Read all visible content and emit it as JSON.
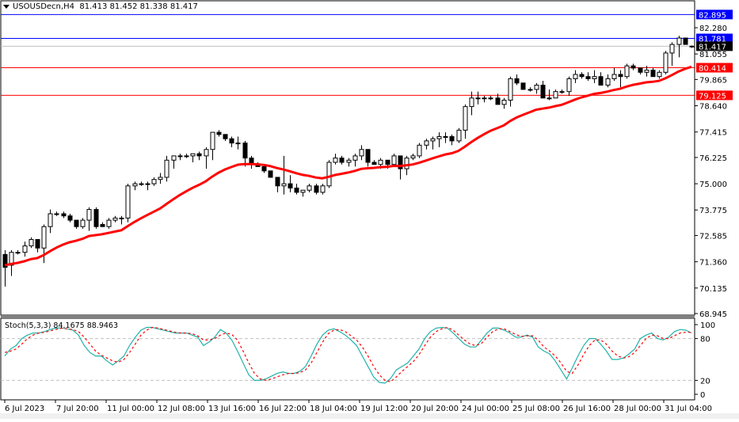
{
  "header": {
    "symbol": "USOUSDecn,H4",
    "ohlc": "81.413 81.452 81.338 81.417"
  },
  "colors": {
    "bull_body": "#ffffff",
    "bear_body": "#000000",
    "ma_line": "#ff0000",
    "blue_level": "#0000ff",
    "red_level": "#ff0000",
    "current_price_line": "#c0c0c0",
    "stoch_main": "#20b2aa",
    "stoch_signal": "#ff0000",
    "grid_dash": "#c0c0c0"
  },
  "price_axis": {
    "ticks": [
      "82.280",
      "81.055",
      "79.865",
      "78.640",
      "77.415",
      "76.225",
      "75.000",
      "73.775",
      "72.585",
      "71.360",
      "70.135",
      "68.945"
    ],
    "badges": [
      {
        "label": "82.895",
        "color": "#0000ff",
        "text_color": "#ffffff"
      },
      {
        "label": "81.781",
        "color": "#0000ff",
        "text_color": "#ffffff"
      },
      {
        "label": "81.417",
        "color": "#000000",
        "text_color": "#ffffff"
      },
      {
        "label": "80.414",
        "color": "#ff0000",
        "text_color": "#ffffff"
      },
      {
        "label": "79.125",
        "color": "#ff0000",
        "text_color": "#ffffff"
      }
    ]
  },
  "stoch": {
    "label": "Stoch(5,3,3) 84.1675 88.9463",
    "levels": [
      "100",
      "80",
      "20",
      "0"
    ]
  },
  "time_axis": {
    "labels": [
      "6 Jul 2023",
      "7 Jul 20:00",
      "11 Jul 00:00",
      "12 Jul 08:00",
      "13 Jul 16:00",
      "16 Jul 22:00",
      "18 Jul 04:00",
      "19 Jul 12:00",
      "20 Jul 20:00",
      "24 Jul 00:00",
      "25 Jul 08:00",
      "26 Jul 16:00",
      "28 Jul 00:00",
      "31 Jul 04:00"
    ]
  },
  "chart_data": [
    {
      "type": "candlestick",
      "title": "USOUSDecn,H4",
      "subtitle": "81.413 81.452 81.338 81.417",
      "ylim": [
        68.945,
        82.895
      ],
      "price_levels": {
        "resistance_blue": [
          82.895,
          81.781
        ],
        "support_red": [
          80.414,
          79.125
        ],
        "current": 81.417
      },
      "moving_average": {
        "color": "#ff0000",
        "from": 71.2,
        "to": 80.2
      },
      "x_labels": [
        "6 Jul 2023",
        "7 Jul 20:00",
        "11 Jul 00:00",
        "12 Jul 08:00",
        "13 Jul 16:00",
        "16 Jul 22:00",
        "18 Jul 04:00",
        "19 Jul 12:00",
        "20 Jul 20:00",
        "24 Jul 00:00",
        "25 Jul 08:00",
        "26 Jul 16:00",
        "28 Jul 00:00",
        "31 Jul 04:00"
      ],
      "candles": [
        [
          71.7,
          71.9,
          70.2,
          71.1
        ],
        [
          71.2,
          71.9,
          70.7,
          71.8
        ],
        [
          71.8,
          71.9,
          71.7,
          71.8
        ],
        [
          71.8,
          72.3,
          71.6,
          72.1
        ],
        [
          72.1,
          72.5,
          72.0,
          72.4
        ],
        [
          72.4,
          72.4,
          71.8,
          72.0
        ],
        [
          72.0,
          73.1,
          71.3,
          73.0
        ],
        [
          73.0,
          73.8,
          72.7,
          73.6
        ],
        [
          73.6,
          73.7,
          73.5,
          73.6
        ],
        [
          73.6,
          73.7,
          73.4,
          73.5
        ],
        [
          73.5,
          73.6,
          73.2,
          73.3
        ],
        [
          73.3,
          73.3,
          72.9,
          73.0
        ],
        [
          73.0,
          73.4,
          72.9,
          73.3
        ],
        [
          73.3,
          73.9,
          72.8,
          73.8
        ],
        [
          73.8,
          73.9,
          72.9,
          73.0
        ],
        [
          73.1,
          73.2,
          73.0,
          73.0
        ],
        [
          73.0,
          73.4,
          72.9,
          73.3
        ],
        [
          73.3,
          73.5,
          73.2,
          73.4
        ],
        [
          73.4,
          73.5,
          73.1,
          73.4
        ],
        [
          73.4,
          75.0,
          73.2,
          74.9
        ],
        [
          74.9,
          75.1,
          74.7,
          75.0
        ],
        [
          75.0,
          75.1,
          74.9,
          75.0
        ],
        [
          75.0,
          75.1,
          74.7,
          75.0
        ],
        [
          75.0,
          75.3,
          74.9,
          75.2
        ],
        [
          75.2,
          75.5,
          75.0,
          75.3
        ],
        [
          75.3,
          76.3,
          75.1,
          76.1
        ],
        [
          76.1,
          76.3,
          75.7,
          76.3
        ],
        [
          76.3,
          76.4,
          76.1,
          76.3
        ],
        [
          76.3,
          76.4,
          76.2,
          76.3
        ],
        [
          76.3,
          76.4,
          76.0,
          76.4
        ],
        [
          76.4,
          76.5,
          76.1,
          76.3
        ],
        [
          76.3,
          76.7,
          75.7,
          76.6
        ],
        [
          76.6,
          77.4,
          76.1,
          77.4
        ],
        [
          77.4,
          77.5,
          77.2,
          77.3
        ],
        [
          77.3,
          77.3,
          77.0,
          77.1
        ],
        [
          77.1,
          77.2,
          76.7,
          76.9
        ],
        [
          76.9,
          77.2,
          76.6,
          76.9
        ],
        [
          76.9,
          77.0,
          75.8,
          76.2
        ],
        [
          76.2,
          76.3,
          75.7,
          75.9
        ],
        [
          75.9,
          76.0,
          75.8,
          75.8
        ],
        [
          75.8,
          75.8,
          75.5,
          75.6
        ],
        [
          75.6,
          75.6,
          75.4,
          75.3
        ],
        [
          75.3,
          75.3,
          74.6,
          74.9
        ],
        [
          74.9,
          76.3,
          74.5,
          75.0
        ],
        [
          75.0,
          75.4,
          74.6,
          74.8
        ],
        [
          74.8,
          75.0,
          74.5,
          74.6
        ],
        [
          74.6,
          74.7,
          74.4,
          74.7
        ],
        [
          74.7,
          75.0,
          74.6,
          74.9
        ],
        [
          74.9,
          75.0,
          74.5,
          74.6
        ],
        [
          74.6,
          75.0,
          74.5,
          74.9
        ],
        [
          74.9,
          76.1,
          74.8,
          76.0
        ],
        [
          76.0,
          76.4,
          75.9,
          76.2
        ],
        [
          76.2,
          76.3,
          75.9,
          76.0
        ],
        [
          76.0,
          76.2,
          75.8,
          76.1
        ],
        [
          76.1,
          76.4,
          75.8,
          76.3
        ],
        [
          76.3,
          76.8,
          76.1,
          76.6
        ],
        [
          76.6,
          76.6,
          75.8,
          76.0
        ],
        [
          76.0,
          76.1,
          75.9,
          75.9
        ],
        [
          75.9,
          76.2,
          75.7,
          76.1
        ],
        [
          76.1,
          76.1,
          75.7,
          75.9
        ],
        [
          75.9,
          76.4,
          75.8,
          76.3
        ],
        [
          76.3,
          76.3,
          75.2,
          75.7
        ],
        [
          75.7,
          76.3,
          75.4,
          76.2
        ],
        [
          76.2,
          76.4,
          76.1,
          76.3
        ],
        [
          76.3,
          76.9,
          76.2,
          76.8
        ],
        [
          76.8,
          77.1,
          76.6,
          77.0
        ],
        [
          77.0,
          77.2,
          76.6,
          77.1
        ],
        [
          77.1,
          77.4,
          76.7,
          77.2
        ],
        [
          77.2,
          77.4,
          76.9,
          77.2
        ],
        [
          77.2,
          77.3,
          76.8,
          77.0
        ],
        [
          77.0,
          77.6,
          76.9,
          77.5
        ],
        [
          77.5,
          78.7,
          77.1,
          78.6
        ],
        [
          78.6,
          79.3,
          78.2,
          79.0
        ],
        [
          79.0,
          79.3,
          78.7,
          79.0
        ],
        [
          79.0,
          79.1,
          78.8,
          79.0
        ],
        [
          79.0,
          79.1,
          78.9,
          79.0
        ],
        [
          79.0,
          79.2,
          78.7,
          78.7
        ],
        [
          78.7,
          79.0,
          78.5,
          78.9
        ],
        [
          78.9,
          80.0,
          78.6,
          79.9
        ],
        [
          79.9,
          80.1,
          79.6,
          79.7
        ],
        [
          79.7,
          79.7,
          79.4,
          79.4
        ],
        [
          79.4,
          79.5,
          79.3,
          79.4
        ],
        [
          79.4,
          79.7,
          79.2,
          79.6
        ],
        [
          79.6,
          79.8,
          79.0,
          79.0
        ],
        [
          79.0,
          79.4,
          78.9,
          79.0
        ],
        [
          79.0,
          79.4,
          79.1,
          79.3
        ],
        [
          79.3,
          79.4,
          79.2,
          79.3
        ],
        [
          79.3,
          80.0,
          79.1,
          79.9
        ],
        [
          79.9,
          80.3,
          79.7,
          80.1
        ],
        [
          80.1,
          80.2,
          79.9,
          80.0
        ],
        [
          80.0,
          80.2,
          79.8,
          79.9
        ],
        [
          79.9,
          80.3,
          79.7,
          80.0
        ],
        [
          80.0,
          80.2,
          79.8,
          79.6
        ],
        [
          79.6,
          80.1,
          79.5,
          79.9
        ],
        [
          79.9,
          80.4,
          79.8,
          80.1
        ],
        [
          80.1,
          80.3,
          79.5,
          80.0
        ],
        [
          80.0,
          80.6,
          79.9,
          80.5
        ],
        [
          80.5,
          80.6,
          80.3,
          80.4
        ],
        [
          80.4,
          80.4,
          80.1,
          80.2
        ],
        [
          80.2,
          80.5,
          80.0,
          80.3
        ],
        [
          80.3,
          80.4,
          80.0,
          80.0
        ],
        [
          80.0,
          80.3,
          79.9,
          80.2
        ],
        [
          80.2,
          81.2,
          80.1,
          81.1
        ],
        [
          81.1,
          81.6,
          80.5,
          81.5
        ],
        [
          81.5,
          81.9,
          80.9,
          81.8
        ],
        [
          81.8,
          81.8,
          81.5,
          81.5
        ],
        [
          81.4,
          81.45,
          81.34,
          81.42
        ]
      ]
    },
    {
      "type": "line",
      "title": "Stoch(5,3,3) 84.1675 88.9463",
      "ylim": [
        0,
        100
      ],
      "levels": [
        80,
        20
      ],
      "series": [
        {
          "name": "%K",
          "color": "#20b2aa",
          "values": [
            55,
            65,
            70,
            80,
            85,
            88,
            88,
            90,
            93,
            95,
            95,
            94,
            92,
            85,
            70,
            60,
            55,
            55,
            48,
            42,
            48,
            55,
            70,
            82,
            92,
            96,
            96,
            94,
            92,
            90,
            88,
            88,
            88,
            85,
            82,
            70,
            75,
            82,
            93,
            88,
            78,
            62,
            45,
            28,
            20,
            20,
            22,
            26,
            30,
            32,
            30,
            30,
            33,
            40,
            55,
            72,
            85,
            92,
            94,
            90,
            85,
            78,
            70,
            55,
            40,
            25,
            17,
            16,
            23,
            35,
            40,
            45,
            55,
            65,
            80,
            90,
            95,
            96,
            95,
            88,
            80,
            72,
            68,
            68,
            78,
            88,
            95,
            95,
            92,
            88,
            82,
            82,
            85,
            82,
            68,
            62,
            58,
            48,
            35,
            22,
            38,
            55,
            70,
            80,
            80,
            72,
            62,
            50,
            50,
            52,
            58,
            65,
            80,
            85,
            88,
            80,
            78,
            82,
            90,
            93,
            92,
            88
          ]
        },
        {
          "name": "%D",
          "color": "#ff0000",
          "values": [
            60,
            62,
            65,
            72,
            80,
            85,
            88,
            89,
            91,
            93,
            95,
            94,
            93,
            90,
            82,
            72,
            62,
            56,
            52,
            48,
            46,
            50,
            60,
            72,
            85,
            92,
            96,
            95,
            93,
            91,
            89,
            88,
            88,
            87,
            84,
            78,
            78,
            80,
            85,
            88,
            86,
            78,
            62,
            45,
            30,
            22,
            20,
            22,
            25,
            28,
            30,
            30,
            31,
            35,
            45,
            60,
            75,
            87,
            92,
            93,
            90,
            84,
            78,
            68,
            55,
            40,
            28,
            20,
            18,
            25,
            33,
            40,
            47,
            57,
            70,
            82,
            90,
            94,
            96,
            92,
            85,
            78,
            72,
            70,
            73,
            82,
            90,
            94,
            94,
            90,
            86,
            83,
            84,
            84,
            78,
            68,
            62,
            55,
            45,
            33,
            30,
            42,
            57,
            70,
            78,
            78,
            72,
            62,
            55,
            52,
            54,
            60,
            70,
            80,
            85,
            84,
            80,
            80,
            84,
            88,
            89,
            89
          ]
        }
      ]
    }
  ]
}
